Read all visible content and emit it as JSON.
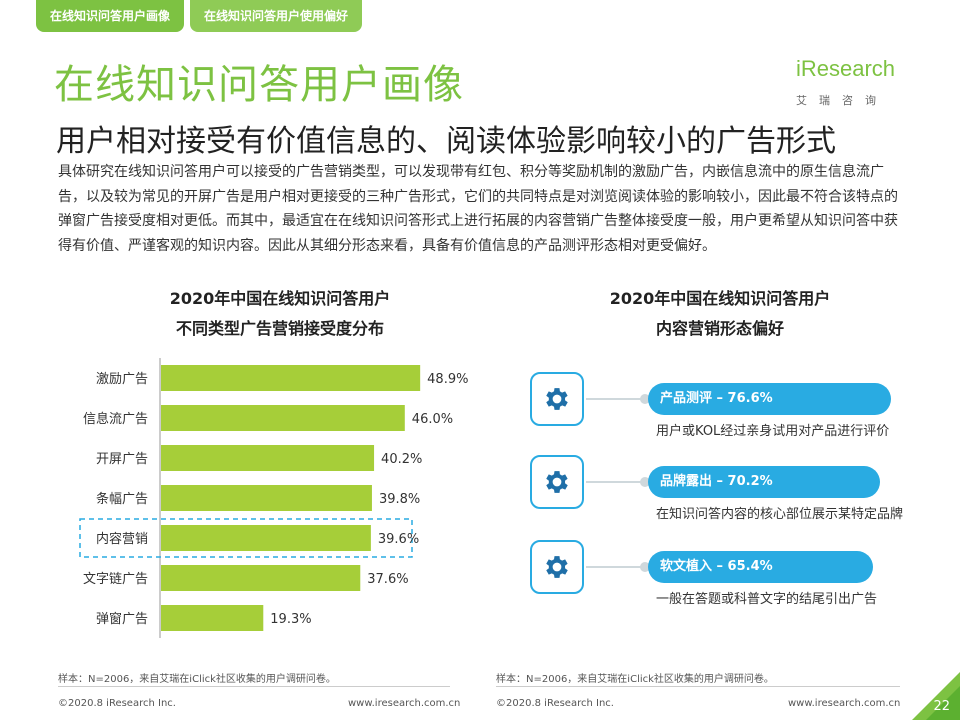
{
  "tabs": [
    {
      "label": "在线知识问答用户画像"
    },
    {
      "label": "在线知识问答用户使用偏好"
    }
  ],
  "title": "在线知识问答用户画像",
  "subtitle": "用户相对接受有价值信息的、阅读体验影响较小的广告形式",
  "logo": {
    "text": "iResearch",
    "cn": "艾瑞咨询"
  },
  "description": "具体研究在线知识问答用户可以接受的广告营销类型，可以发现带有红包、积分等奖励机制的激励广告，内嵌信息流中的原生信息流广告，以及较为常见的开屏广告是用户相对更接受的三种广告形式，它们的共同特点是对浏览阅读体验的影响较小，因此最不符合该特点的弹窗广告接受度相对更低。而其中，最适宜在在线知识问答形式上进行拓展的内容营销广告整体接受度一般，用户更希望从知识问答中获得有价值、严谨客观的知识内容。因此从其细分形态来看，具备有价值信息的产品测评形态相对更受偏好。",
  "left_chart": {
    "title_line1": "2020年中国在线知识问答用户",
    "title_line2": "不同类型广告营销接受度分布"
  },
  "right_chart": {
    "title_line1": "2020年中国在线知识问答用户",
    "title_line2": "内容营销形态偏好",
    "items": [
      {
        "label": "产品测评 – 76.6%",
        "value": 76.6,
        "desc": "用户或KOL经过亲身试用对产品进行评价",
        "color": "#29abe2"
      },
      {
        "label": "品牌露出 – 70.2%",
        "value": 70.2,
        "desc": "在知识问答内容的核心部位展示某特定品牌",
        "color": "#29abe2"
      },
      {
        "label": "软文植入 – 65.4%",
        "value": 65.4,
        "desc": "一般在答题或科普文字的结尾引出广告",
        "color": "#29abe2"
      }
    ]
  },
  "chart_data": [
    {
      "type": "bar",
      "orientation": "horizontal",
      "title": "2020年中国在线知识问答用户 不同类型广告营销接受度分布",
      "categories": [
        "激励广告",
        "信息流广告",
        "开屏广告",
        "条幅广告",
        "内容营销",
        "文字链广告",
        "弹窗广告"
      ],
      "values": [
        48.9,
        46.0,
        40.2,
        39.8,
        39.6,
        37.6,
        19.3
      ],
      "value_labels": [
        "48.9%",
        "46.0%",
        "40.2%",
        "39.8%",
        "39.6%",
        "37.6%",
        "19.3%"
      ],
      "highlight": "内容营销",
      "color": "#a6ce39",
      "grid": false
    }
  ],
  "footnotes": {
    "left": "样本：N=2006，来自艾瑞在iClick社区收集的用户调研问卷。",
    "right": "样本：N=2006，来自艾瑞在iClick社区收集的用户调研问卷。"
  },
  "footer": {
    "copyright_left": "©2020.8 iResearch Inc.",
    "url_left": "www.iresearch.com.cn",
    "copyright_right": "©2020.8 iResearch Inc.",
    "url_right": "www.iresearch.com.cn",
    "page_number": "22"
  }
}
